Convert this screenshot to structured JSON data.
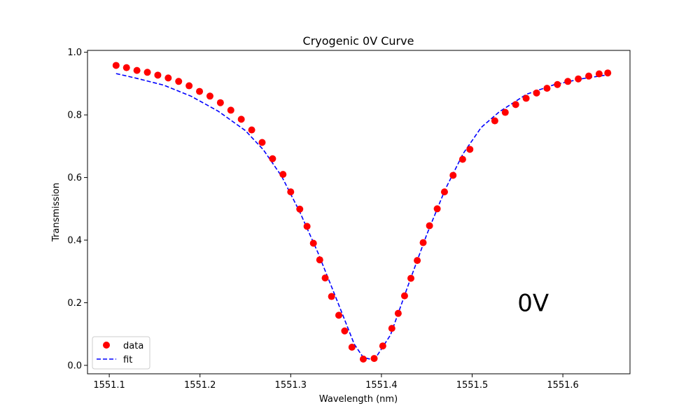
{
  "chart_data": {
    "type": "scatter",
    "title": "Cryogenic 0V Curve",
    "xlabel": "Wavelength (nm)",
    "ylabel": "Transmission",
    "xlim": [
      1551.076,
      1551.674
    ],
    "ylim": [
      -0.027,
      1.006
    ],
    "xticks": [
      1551.1,
      1551.2,
      1551.3,
      1551.4,
      1551.5,
      1551.6
    ],
    "xtick_labels": [
      "1551.1",
      "1551.2",
      "1551.3",
      "1551.4",
      "1551.5",
      "1551.6"
    ],
    "yticks": [
      0.0,
      0.2,
      0.4,
      0.6,
      0.8,
      1.0
    ],
    "ytick_labels": [
      "0.0",
      "0.2",
      "0.4",
      "0.6",
      "0.8",
      "1.0"
    ],
    "grid": false,
    "legend_position": "lower-left",
    "annotation": {
      "text": "0V",
      "x": 1551.55,
      "y": 0.2,
      "color": "#ff0000"
    },
    "series": [
      {
        "name": "data",
        "kind": "scatter",
        "color": "#ff0000",
        "x": [
          1551.1075,
          1551.119,
          1551.1305,
          1551.142,
          1551.1535,
          1551.165,
          1551.1765,
          1551.188,
          1551.1995,
          1551.211,
          1551.2225,
          1551.234,
          1551.2455,
          1551.257,
          1551.2685,
          1551.28,
          1551.2915,
          1551.3,
          1551.31,
          1551.318,
          1551.325,
          1551.332,
          1551.338,
          1551.345,
          1551.353,
          1551.3595,
          1551.3675,
          1551.38,
          1551.392,
          1551.4015,
          1551.4115,
          1551.4185,
          1551.4255,
          1551.4325,
          1551.4395,
          1551.446,
          1551.453,
          1551.4615,
          1551.4695,
          1551.479,
          1551.4895,
          1551.4975,
          1551.525,
          1551.5365,
          1551.548,
          1551.5595,
          1551.571,
          1551.5825,
          1551.594,
          1551.6055,
          1551.617,
          1551.6285,
          1551.64,
          1551.6495
        ],
        "y": [
          0.958,
          0.951,
          0.942,
          0.936,
          0.927,
          0.918,
          0.907,
          0.893,
          0.875,
          0.86,
          0.839,
          0.815,
          0.786,
          0.752,
          0.712,
          0.66,
          0.61,
          0.554,
          0.499,
          0.444,
          0.39,
          0.337,
          0.279,
          0.22,
          0.16,
          0.11,
          0.058,
          0.02,
          0.022,
          0.062,
          0.118,
          0.166,
          0.222,
          0.278,
          0.335,
          0.392,
          0.446,
          0.5,
          0.554,
          0.607,
          0.658,
          0.69,
          0.781,
          0.808,
          0.833,
          0.853,
          0.87,
          0.885,
          0.897,
          0.907,
          0.915,
          0.924,
          0.931,
          0.934
        ]
      },
      {
        "name": "fit",
        "kind": "line",
        "style": "dashed",
        "color": "#0000ff",
        "x": [
          1551.1075,
          1551.13,
          1551.16,
          1551.19,
          1551.22,
          1551.25,
          1551.27,
          1551.29,
          1551.31,
          1551.33,
          1551.35,
          1551.37,
          1551.38,
          1551.3875,
          1551.395,
          1551.41,
          1551.43,
          1551.45,
          1551.47,
          1551.49,
          1551.51,
          1551.53,
          1551.56,
          1551.59,
          1551.62,
          1551.6495
        ],
        "y": [
          0.932,
          0.917,
          0.895,
          0.86,
          0.812,
          0.75,
          0.688,
          0.604,
          0.49,
          0.36,
          0.215,
          0.068,
          0.025,
          0.02,
          0.03,
          0.097,
          0.26,
          0.418,
          0.56,
          0.676,
          0.76,
          0.81,
          0.866,
          0.896,
          0.915,
          0.928
        ]
      }
    ]
  }
}
